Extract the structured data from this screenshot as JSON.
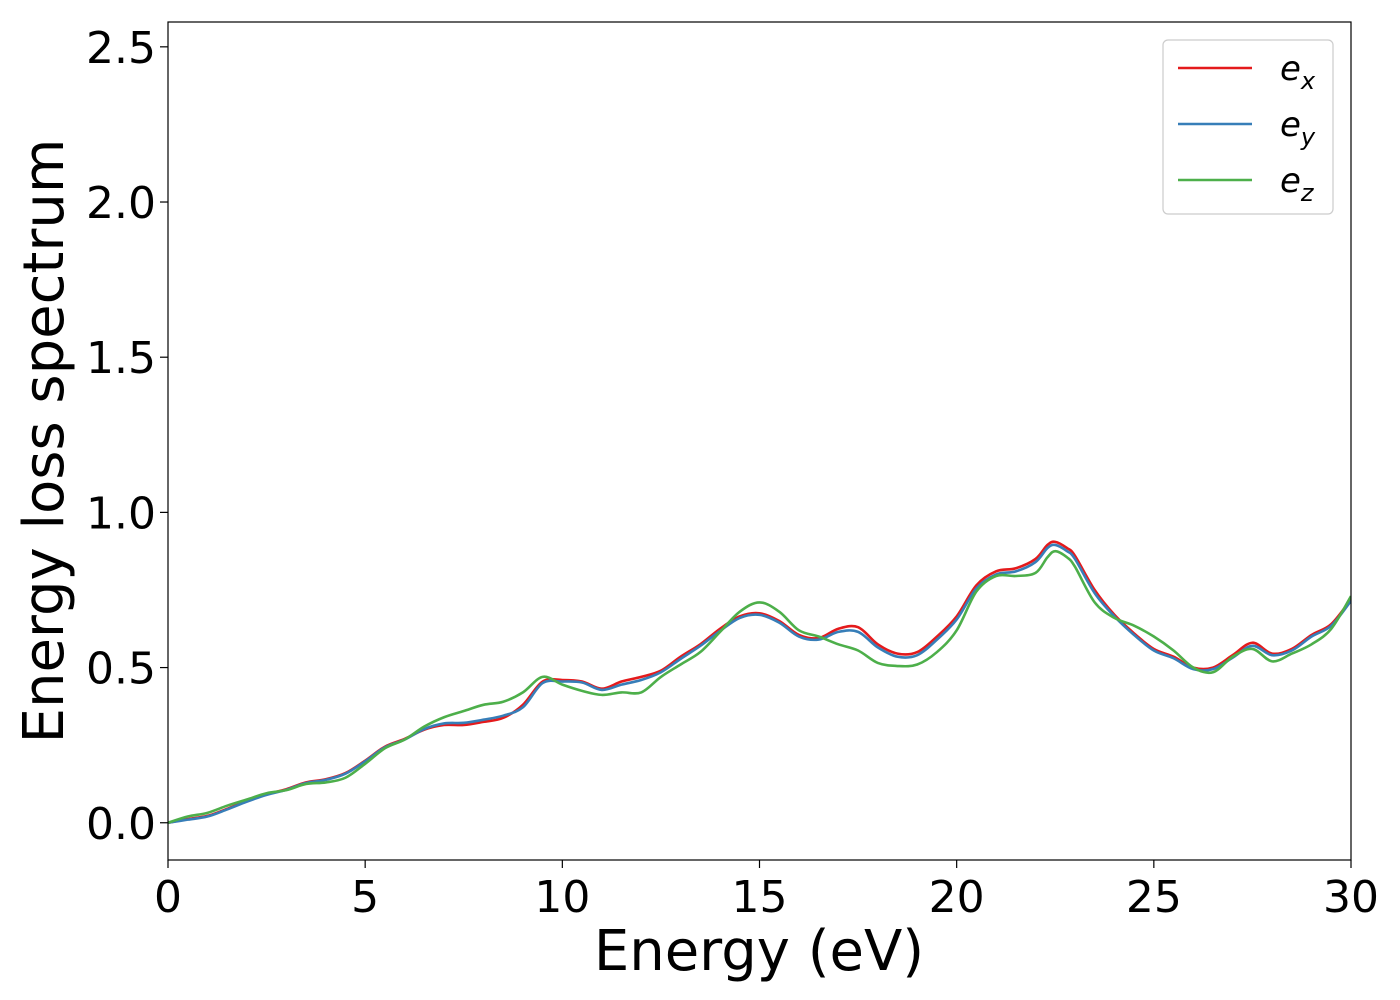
{
  "chart_data": {
    "type": "line",
    "title": "",
    "xlabel": "Energy (eV)",
    "ylabel": "Energy loss spectrum",
    "xlim": [
      0,
      30
    ],
    "ylim": [
      -0.12,
      2.58
    ],
    "xticks": [
      0,
      5,
      10,
      15,
      20,
      25,
      30
    ],
    "xtick_labels": [
      "0",
      "5",
      "10",
      "15",
      "20",
      "25",
      "30"
    ],
    "yticks": [
      0.0,
      0.5,
      1.0,
      1.5,
      2.0,
      2.5
    ],
    "ytick_labels": [
      "0.0",
      "0.5",
      "1.0",
      "1.5",
      "2.0",
      "2.5"
    ],
    "grid": false,
    "legend_position": "top-right",
    "series": [
      {
        "name": "ex",
        "legend_base": "e",
        "legend_sub": "x",
        "color": "#e41a1c",
        "x": [
          0,
          0.5,
          1,
          1.5,
          2,
          2.5,
          3,
          3.5,
          4,
          4.5,
          5,
          5.5,
          6,
          6.5,
          7,
          7.5,
          8,
          8.5,
          9,
          9.5,
          10,
          10.5,
          11,
          11.5,
          12,
          12.5,
          13,
          13.5,
          14,
          14.5,
          15,
          15.5,
          16,
          16.5,
          17,
          17.5,
          18,
          18.5,
          19,
          19.5,
          20,
          20.5,
          21,
          21.5,
          22,
          22.3,
          22.5,
          22.8,
          23,
          23.5,
          24,
          24.5,
          25,
          25.5,
          26,
          26.5,
          27,
          27.5,
          28,
          28.5,
          29,
          29.5,
          30
        ],
        "y": [
          0.0,
          0.012,
          0.022,
          0.045,
          0.07,
          0.092,
          0.108,
          0.13,
          0.14,
          0.16,
          0.2,
          0.245,
          0.27,
          0.3,
          0.315,
          0.315,
          0.325,
          0.338,
          0.38,
          0.455,
          0.46,
          0.455,
          0.432,
          0.455,
          0.47,
          0.49,
          0.535,
          0.575,
          0.625,
          0.665,
          0.675,
          0.65,
          0.605,
          0.595,
          0.625,
          0.63,
          0.575,
          0.545,
          0.55,
          0.6,
          0.665,
          0.765,
          0.81,
          0.82,
          0.85,
          0.895,
          0.905,
          0.885,
          0.86,
          0.75,
          0.67,
          0.61,
          0.56,
          0.535,
          0.5,
          0.5,
          0.54,
          0.58,
          0.545,
          0.56,
          0.605,
          0.64,
          0.72
        ]
      },
      {
        "name": "ey",
        "legend_base": "e",
        "legend_sub": "y",
        "color": "#377eb8",
        "x": [
          0,
          0.5,
          1,
          1.5,
          2,
          2.5,
          3,
          3.5,
          4,
          4.5,
          5,
          5.5,
          6,
          6.5,
          7,
          7.5,
          8,
          8.5,
          9,
          9.5,
          10,
          10.5,
          11,
          11.5,
          12,
          12.5,
          13,
          13.5,
          14,
          14.5,
          15,
          15.5,
          16,
          16.5,
          17,
          17.5,
          18,
          18.5,
          19,
          19.5,
          20,
          20.5,
          21,
          21.5,
          22,
          22.3,
          22.5,
          22.8,
          23,
          23.5,
          24,
          24.5,
          25,
          25.5,
          26,
          26.5,
          27,
          27.5,
          28,
          28.5,
          29,
          29.5,
          30
        ],
        "y": [
          0.0,
          0.01,
          0.02,
          0.043,
          0.068,
          0.09,
          0.106,
          0.128,
          0.138,
          0.158,
          0.198,
          0.243,
          0.268,
          0.302,
          0.32,
          0.322,
          0.332,
          0.345,
          0.372,
          0.45,
          0.455,
          0.452,
          0.428,
          0.445,
          0.46,
          0.485,
          0.528,
          0.57,
          0.618,
          0.66,
          0.67,
          0.645,
          0.6,
          0.59,
          0.615,
          0.615,
          0.565,
          0.535,
          0.54,
          0.59,
          0.655,
          0.755,
          0.8,
          0.81,
          0.84,
          0.885,
          0.895,
          0.875,
          0.85,
          0.74,
          0.665,
          0.605,
          0.555,
          0.53,
          0.495,
          0.495,
          0.532,
          0.57,
          0.54,
          0.555,
          0.6,
          0.635,
          0.715
        ]
      },
      {
        "name": "ez",
        "legend_base": "e",
        "legend_sub": "z",
        "color": "#4daf4a",
        "x": [
          0,
          0.5,
          1,
          1.5,
          2,
          2.5,
          3,
          3.5,
          4,
          4.5,
          5,
          5.5,
          6,
          6.5,
          7,
          7.5,
          8,
          8.5,
          9,
          9.5,
          10,
          10.5,
          11,
          11.5,
          12,
          12.5,
          13,
          13.5,
          14,
          14.5,
          15,
          15.5,
          16,
          16.5,
          17,
          17.5,
          18,
          18.5,
          19,
          19.5,
          20,
          20.5,
          21,
          21.5,
          22,
          22.3,
          22.5,
          22.8,
          23,
          23.5,
          24,
          24.5,
          25,
          25.5,
          26,
          26.5,
          27,
          27.5,
          28,
          28.5,
          29,
          29.5,
          30
        ],
        "y": [
          0.0,
          0.02,
          0.032,
          0.055,
          0.075,
          0.095,
          0.105,
          0.125,
          0.13,
          0.145,
          0.19,
          0.24,
          0.268,
          0.31,
          0.34,
          0.36,
          0.38,
          0.39,
          0.42,
          0.47,
          0.445,
          0.425,
          0.412,
          0.42,
          0.42,
          0.47,
          0.51,
          0.55,
          0.615,
          0.68,
          0.71,
          0.68,
          0.62,
          0.6,
          0.575,
          0.555,
          0.515,
          0.505,
          0.51,
          0.55,
          0.62,
          0.745,
          0.795,
          0.795,
          0.805,
          0.855,
          0.875,
          0.855,
          0.825,
          0.71,
          0.66,
          0.635,
          0.6,
          0.555,
          0.5,
          0.485,
          0.535,
          0.56,
          0.52,
          0.545,
          0.575,
          0.625,
          0.73
        ]
      }
    ]
  }
}
